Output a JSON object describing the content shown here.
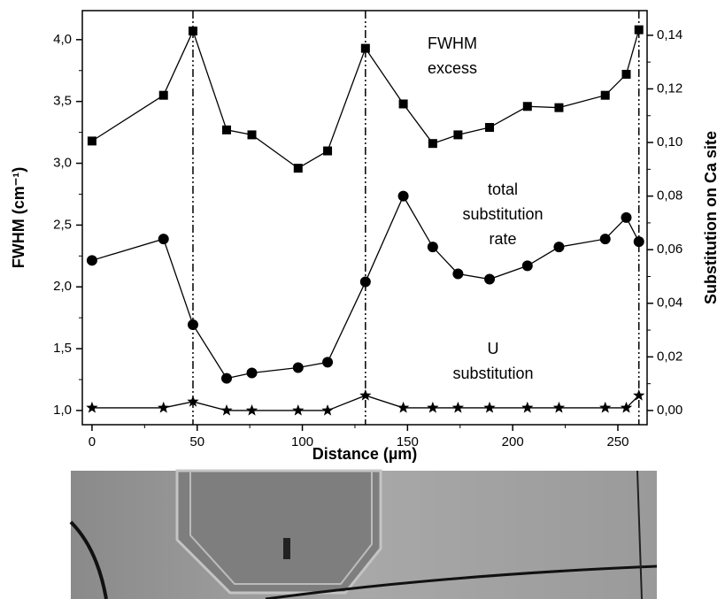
{
  "chart_data": {
    "type": "line",
    "xlabel": "Distance (µm)",
    "ylabel": "FWHM (cm⁻¹)",
    "y2label": "Substitution on Ca site",
    "x": [
      0,
      34,
      48,
      64,
      76,
      98,
      112,
      130,
      148,
      162,
      174,
      189,
      207,
      222,
      244,
      254,
      260
    ],
    "series": [
      {
        "name": "FWHM excess",
        "color": "#000000",
        "marker": "square",
        "axis": "y",
        "values": [
          3.18,
          3.55,
          4.07,
          3.27,
          3.23,
          2.96,
          3.1,
          3.93,
          3.48,
          3.16,
          3.23,
          3.29,
          3.46,
          3.45,
          3.55,
          3.72,
          4.08
        ]
      },
      {
        "name": "total substitution rate",
        "color": "#000000",
        "marker": "circle",
        "axis": "y2",
        "values": [
          0.056,
          0.064,
          0.032,
          0.012,
          0.014,
          0.016,
          0.018,
          0.048,
          0.08,
          0.061,
          0.051,
          0.049,
          0.054,
          0.061,
          0.064,
          0.072,
          0.063
        ]
      },
      {
        "name": "U substitution",
        "color": "#000000",
        "marker": "star",
        "axis": "y2",
        "values": [
          0.001,
          0.001,
          0.0033,
          0,
          0,
          0,
          0,
          0.0056,
          0.001,
          0.001,
          0.001,
          0.001,
          0.001,
          0.001,
          0.001,
          0.001,
          0.0056
        ]
      }
    ],
    "annotations": [
      [
        "FWHM",
        "excess"
      ],
      [
        "total",
        "substitution",
        "rate"
      ],
      [
        "U",
        "substitution"
      ]
    ],
    "reference_lines": [
      48,
      130,
      260
    ],
    "xlim": [
      -4.6,
      263.9
    ],
    "xticks": [
      0,
      50,
      100,
      150,
      200,
      250
    ],
    "ylim": [
      0.885,
      4.235
    ],
    "yticks": [
      {
        "value": 1.0,
        "label": "1,0"
      },
      {
        "value": 1.5,
        "label": "1,5"
      },
      {
        "value": 2.0,
        "label": "2,0"
      },
      {
        "value": 2.5,
        "label": "2,5"
      },
      {
        "value": 3.0,
        "label": "3,0"
      },
      {
        "value": 3.5,
        "label": "3,5"
      },
      {
        "value": 4.0,
        "label": "4,0"
      }
    ],
    "y2lim": [
      -0.0053,
      0.1492
    ],
    "y2ticks": [
      {
        "value": 0,
        "label": "0,00"
      },
      {
        "value": 0.02,
        "label": "0,02"
      },
      {
        "value": 0.04,
        "label": "0,04"
      },
      {
        "value": 0.06,
        "label": "0,06"
      },
      {
        "value": 0.08,
        "label": "0,08"
      },
      {
        "value": 0.1,
        "label": "0,10"
      },
      {
        "value": 0.12,
        "label": "0,12"
      },
      {
        "value": 0.14,
        "label": "0,14"
      }
    ]
  }
}
